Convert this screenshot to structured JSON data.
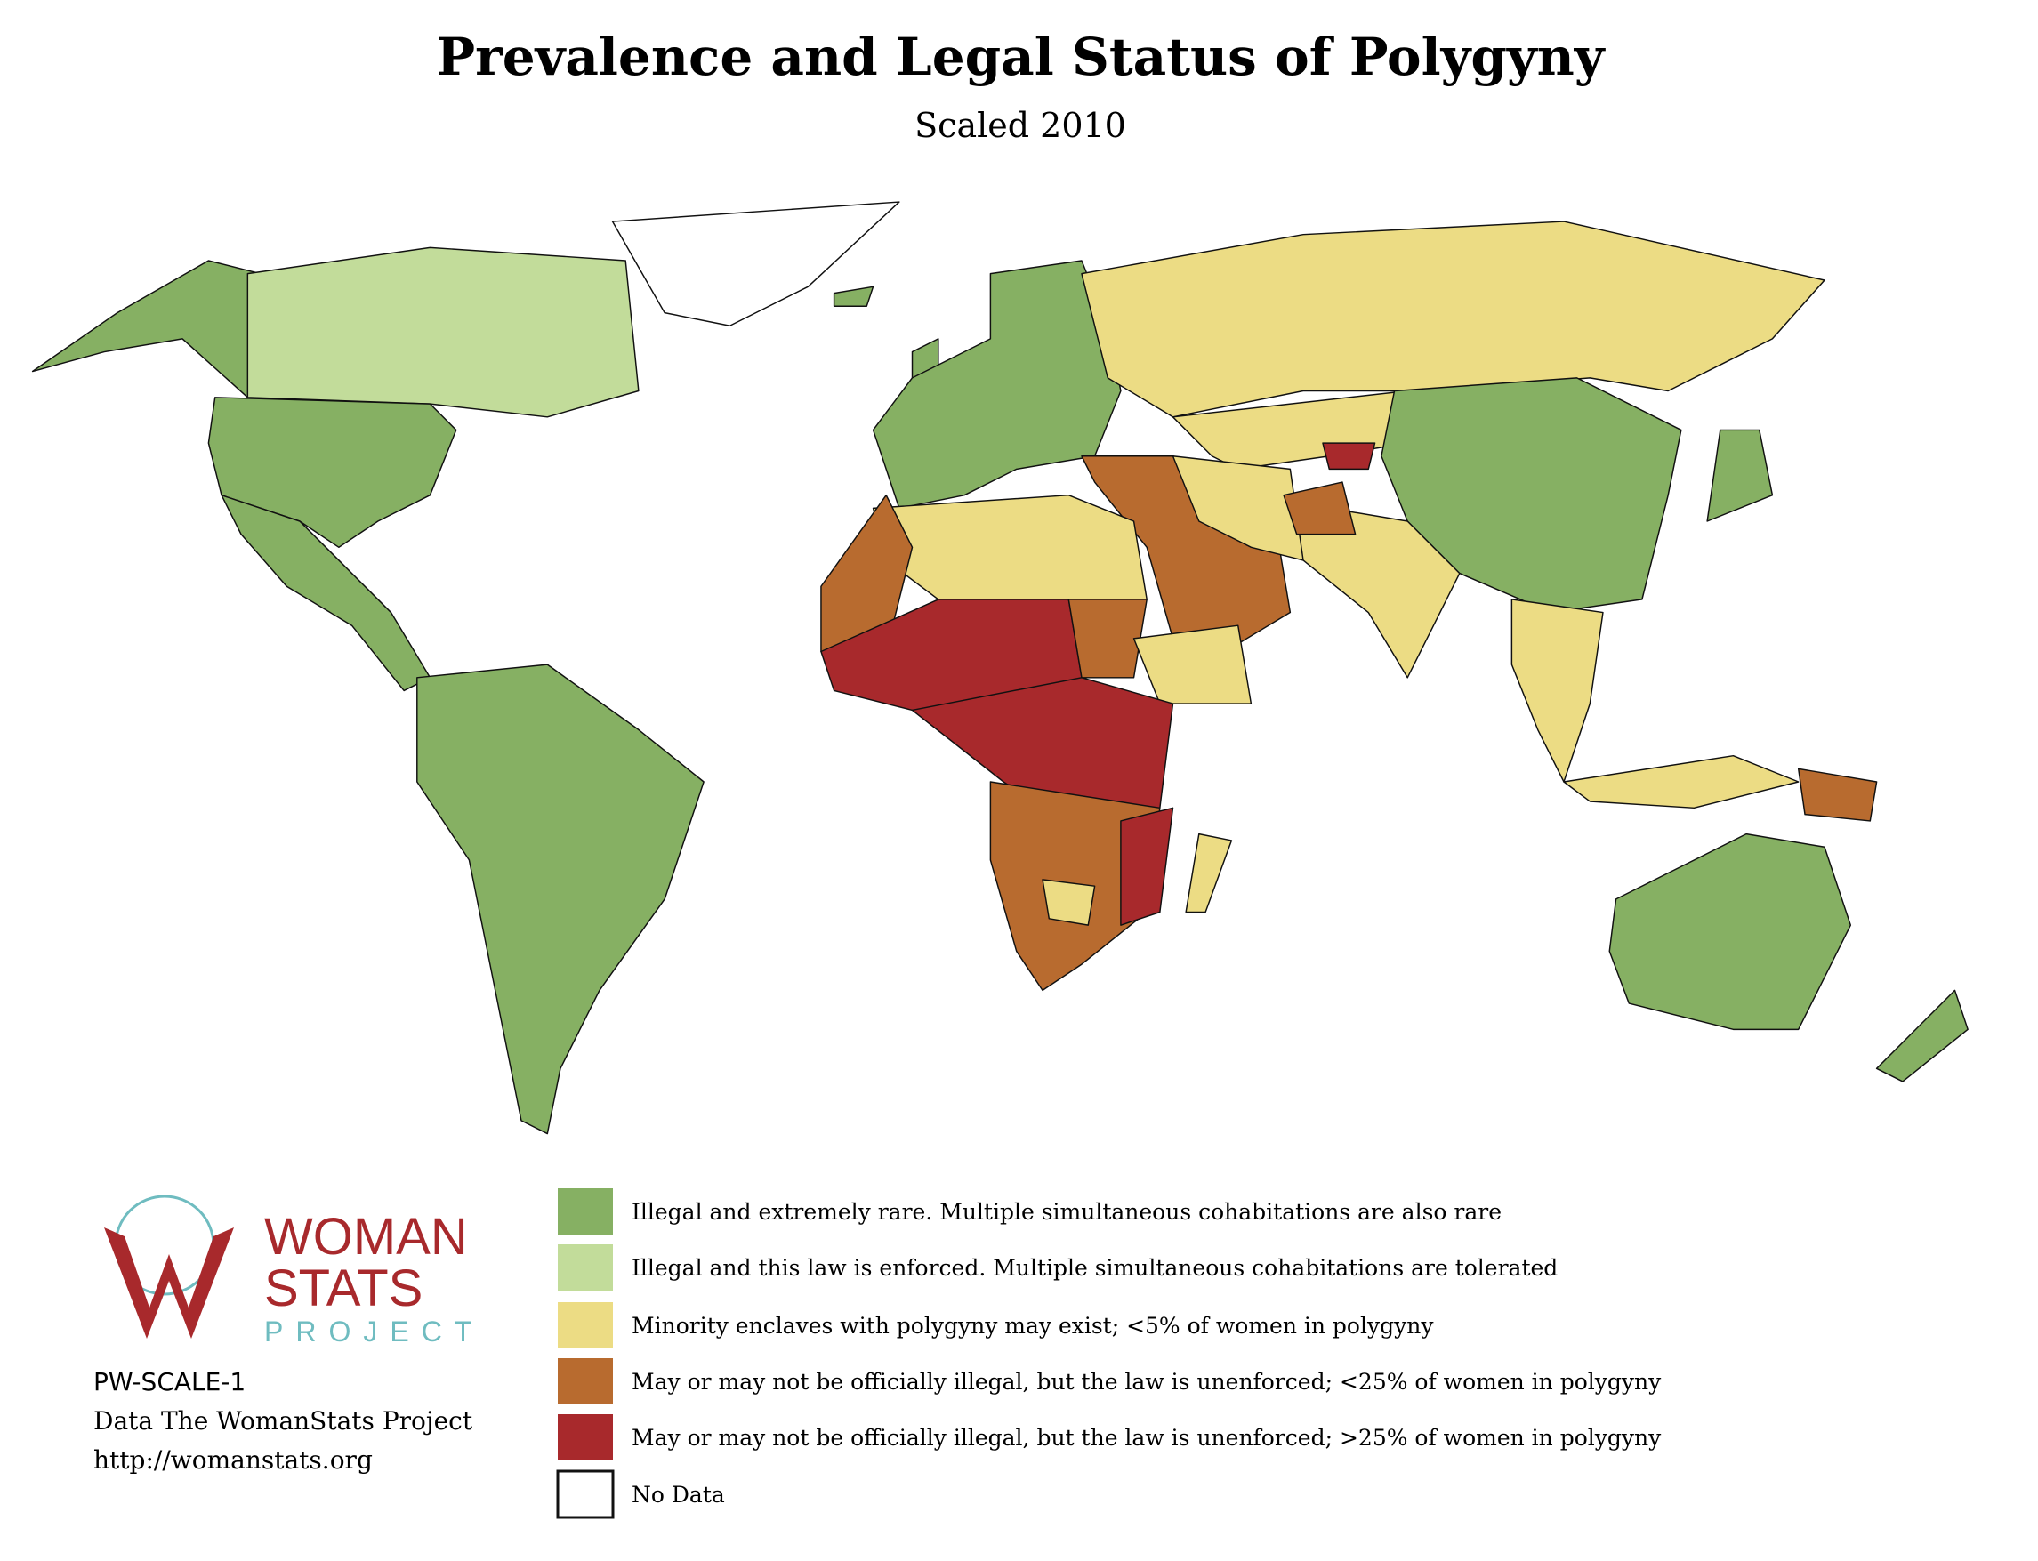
{
  "title": "Prevalence and Legal Status of Polygyny",
  "subtitle": "Scaled 2010",
  "legend": [
    {
      "color": "#86b063",
      "label": "Illegal and extremely rare. Multiple simultaneous cohabitations are also rare"
    },
    {
      "color": "#c2dc9a",
      "label": "Illegal and this law is enforced. Multiple simultaneous cohabitations are tolerated"
    },
    {
      "color": "#ecdc84",
      "label": "Minority enclaves with polygyny may exist; <5% of women in polygyny"
    },
    {
      "color": "#b86b2f",
      "label": "May or may not be officially illegal, but the law is unenforced; <25% of women in polygyny"
    },
    {
      "color": "#a8292c",
      "label": "May or may not be officially illegal, but the law is unenforced; >25% of women in polygyny"
    },
    {
      "color": "#ffffff",
      "label": "No Data"
    }
  ],
  "logo": {
    "line1": "WOMAN",
    "line2": "STATS",
    "line3": "PROJECT"
  },
  "credits": [
    "PW-SCALE-1",
    "Data The WomanStats Project",
    "http://womanstats.org"
  ]
}
